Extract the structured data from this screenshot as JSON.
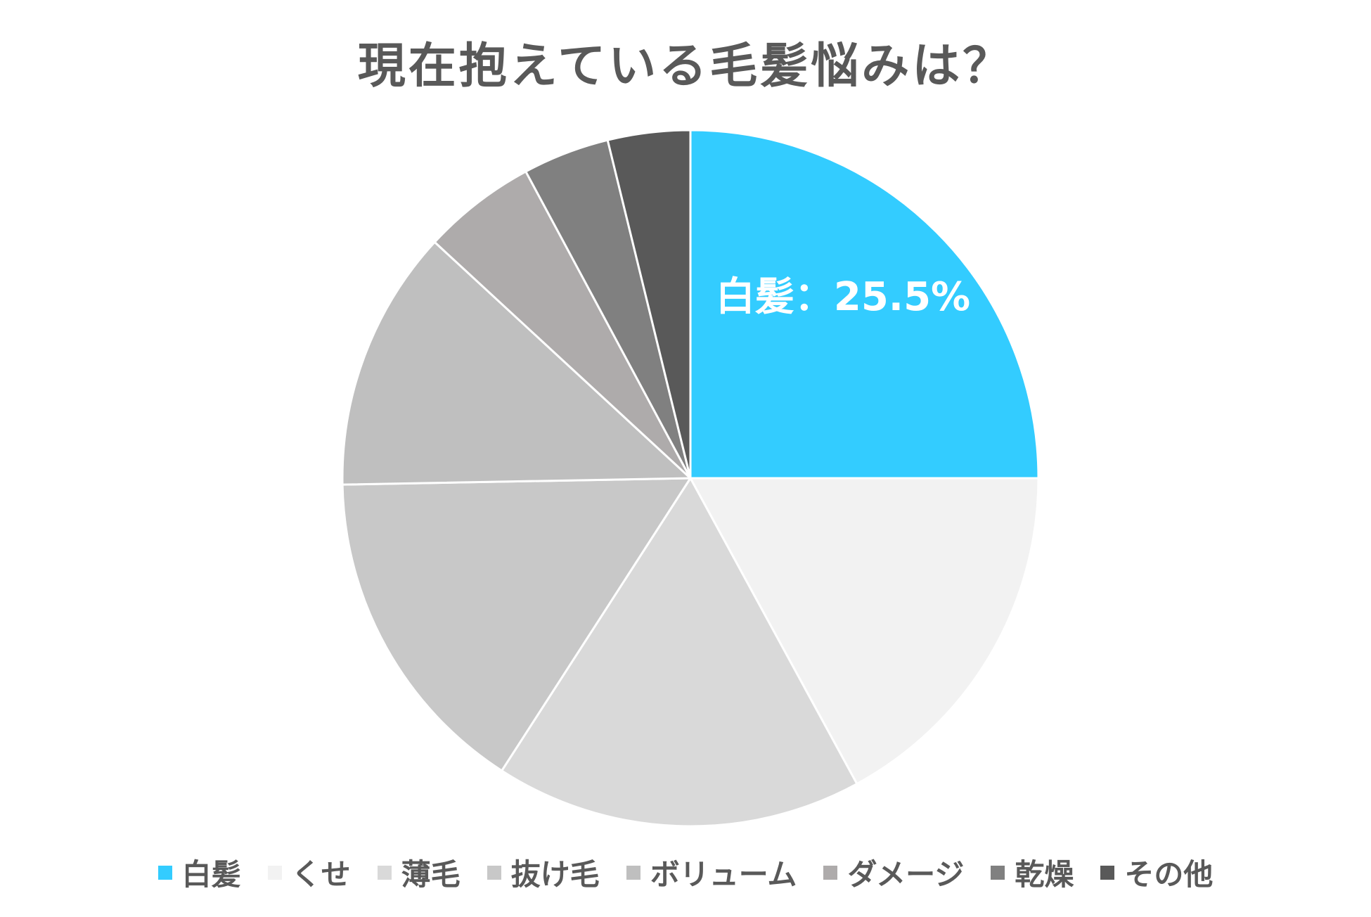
{
  "chart_data": {
    "type": "pie",
    "title": "現在抱えている毛髪悩みは？",
    "categories": [
      "白髪",
      "くせ",
      "薄毛",
      "抜け毛",
      "ボリューム",
      "ダメージ",
      "乾燥",
      "その他"
    ],
    "values": [
      25.5,
      17.4,
      17.4,
      15.9,
      12.4,
      5.4,
      4.1,
      3.9
    ],
    "colors": [
      "#33CCFF",
      "#F2F2F2",
      "#D9D9D9",
      "#C8C8C8",
      "#BFBFBF",
      "#AEABAB",
      "#808080",
      "#595959"
    ],
    "data_labels": [
      {
        "category": "白髪",
        "text": "白髪：25.5%"
      }
    ],
    "legend_position": "bottom"
  }
}
